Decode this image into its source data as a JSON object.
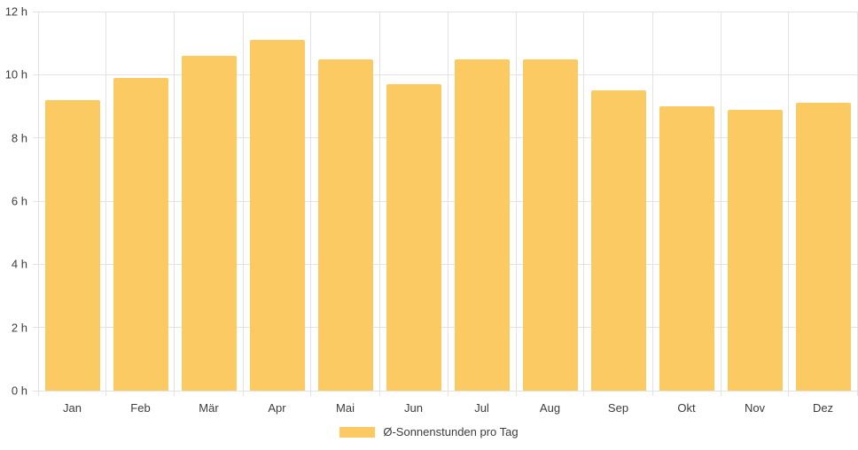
{
  "chart_data": {
    "type": "bar",
    "categories": [
      "Jan",
      "Feb",
      "Mär",
      "Apr",
      "Mai",
      "Jun",
      "Jul",
      "Aug",
      "Sep",
      "Okt",
      "Nov",
      "Dez"
    ],
    "series": [
      {
        "name": "Ø-Sonnenstunden pro Tag",
        "values": [
          9.2,
          9.9,
          10.6,
          11.1,
          10.5,
          9.7,
          10.5,
          10.5,
          9.5,
          9.0,
          8.9,
          9.1
        ]
      }
    ],
    "xlabel": "",
    "ylabel": "",
    "ylim": [
      0,
      12
    ],
    "y_tick_step": 2,
    "y_tick_labels": [
      "0 h",
      "2 h",
      "4 h",
      "6 h",
      "8 h",
      "10 h",
      "12 h"
    ],
    "grid": true,
    "legend_position": "bottom",
    "colors": {
      "bar": "#FBCA63",
      "grid": "#E2E2E2",
      "text": "#3C3C3C"
    }
  }
}
